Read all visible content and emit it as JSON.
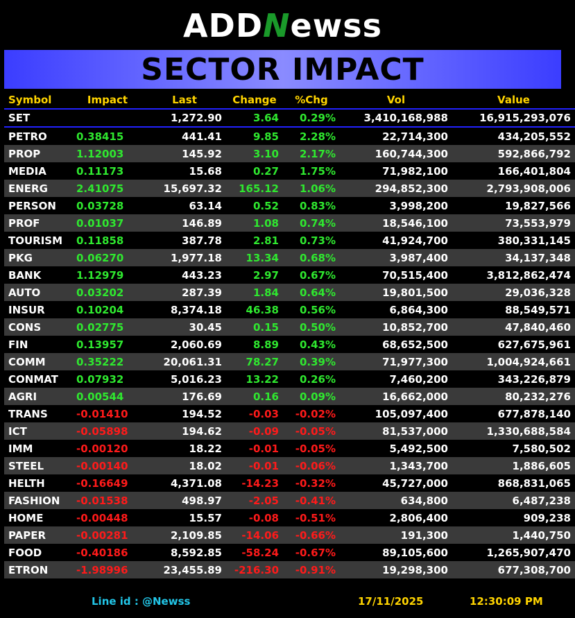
{
  "brand": {
    "part1": "ADD",
    "part2": "N",
    "part3": "ewss"
  },
  "title": "SECTOR IMPACT",
  "headers": [
    "Symbol",
    "Impact",
    "Last",
    "Change",
    "%Chg",
    "Vol",
    "Value"
  ],
  "index_row": {
    "symbol": "SET",
    "impact": "",
    "last": "1,272.90",
    "change": "3.64",
    "pchg": "0.29%",
    "vol": "3,410,168,988",
    "value": "16,915,293,076",
    "dir": "up"
  },
  "rows": [
    {
      "symbol": "PETRO",
      "impact": "0.38415",
      "last": "441.41",
      "change": "9.85",
      "pchg": "2.28%",
      "vol": "22,714,300",
      "value": "434,205,552",
      "dir": "up"
    },
    {
      "symbol": "PROP",
      "impact": "1.12003",
      "last": "145.92",
      "change": "3.10",
      "pchg": "2.17%",
      "vol": "160,744,300",
      "value": "592,866,792",
      "dir": "up"
    },
    {
      "symbol": "MEDIA",
      "impact": "0.11173",
      "last": "15.68",
      "change": "0.27",
      "pchg": "1.75%",
      "vol": "71,982,100",
      "value": "166,401,804",
      "dir": "up"
    },
    {
      "symbol": "ENERG",
      "impact": "2.41075",
      "last": "15,697.32",
      "change": "165.12",
      "pchg": "1.06%",
      "vol": "294,852,300",
      "value": "2,793,908,006",
      "dir": "up"
    },
    {
      "symbol": "PERSON",
      "impact": "0.03728",
      "last": "63.14",
      "change": "0.52",
      "pchg": "0.83%",
      "vol": "3,998,200",
      "value": "19,827,566",
      "dir": "up"
    },
    {
      "symbol": "PROF",
      "impact": "0.01037",
      "last": "146.89",
      "change": "1.08",
      "pchg": "0.74%",
      "vol": "18,546,100",
      "value": "73,553,979",
      "dir": "up"
    },
    {
      "symbol": "TOURISM",
      "impact": "0.11858",
      "last": "387.78",
      "change": "2.81",
      "pchg": "0.73%",
      "vol": "41,924,700",
      "value": "380,331,145",
      "dir": "up"
    },
    {
      "symbol": "PKG",
      "impact": "0.06270",
      "last": "1,977.18",
      "change": "13.34",
      "pchg": "0.68%",
      "vol": "3,987,400",
      "value": "34,137,348",
      "dir": "up"
    },
    {
      "symbol": "BANK",
      "impact": "1.12979",
      "last": "443.23",
      "change": "2.97",
      "pchg": "0.67%",
      "vol": "70,515,400",
      "value": "3,812,862,474",
      "dir": "up"
    },
    {
      "symbol": "AUTO",
      "impact": "0.03202",
      "last": "287.39",
      "change": "1.84",
      "pchg": "0.64%",
      "vol": "19,801,500",
      "value": "29,036,328",
      "dir": "up"
    },
    {
      "symbol": "INSUR",
      "impact": "0.10204",
      "last": "8,374.18",
      "change": "46.38",
      "pchg": "0.56%",
      "vol": "6,864,300",
      "value": "88,549,571",
      "dir": "up"
    },
    {
      "symbol": "CONS",
      "impact": "0.02775",
      "last": "30.45",
      "change": "0.15",
      "pchg": "0.50%",
      "vol": "10,852,700",
      "value": "47,840,460",
      "dir": "up"
    },
    {
      "symbol": "FIN",
      "impact": "0.13957",
      "last": "2,060.69",
      "change": "8.89",
      "pchg": "0.43%",
      "vol": "68,652,500",
      "value": "627,675,961",
      "dir": "up"
    },
    {
      "symbol": "COMM",
      "impact": "0.35222",
      "last": "20,061.31",
      "change": "78.27",
      "pchg": "0.39%",
      "vol": "71,977,300",
      "value": "1,004,924,661",
      "dir": "up"
    },
    {
      "symbol": "CONMAT",
      "impact": "0.07932",
      "last": "5,016.23",
      "change": "13.22",
      "pchg": "0.26%",
      "vol": "7,460,200",
      "value": "343,226,879",
      "dir": "up"
    },
    {
      "symbol": "AGRI",
      "impact": "0.00544",
      "last": "176.69",
      "change": "0.16",
      "pchg": "0.09%",
      "vol": "16,662,000",
      "value": "80,232,276",
      "dir": "up"
    },
    {
      "symbol": "TRANS",
      "impact": "-0.01410",
      "last": "194.52",
      "change": "-0.03",
      "pchg": "-0.02%",
      "vol": "105,097,400",
      "value": "677,878,140",
      "dir": "down"
    },
    {
      "symbol": "ICT",
      "impact": "-0.05898",
      "last": "194.62",
      "change": "-0.09",
      "pchg": "-0.05%",
      "vol": "81,537,000",
      "value": "1,330,688,584",
      "dir": "down"
    },
    {
      "symbol": "IMM",
      "impact": "-0.00120",
      "last": "18.22",
      "change": "-0.01",
      "pchg": "-0.05%",
      "vol": "5,492,500",
      "value": "7,580,502",
      "dir": "down"
    },
    {
      "symbol": "STEEL",
      "impact": "-0.00140",
      "last": "18.02",
      "change": "-0.01",
      "pchg": "-0.06%",
      "vol": "1,343,700",
      "value": "1,886,605",
      "dir": "down"
    },
    {
      "symbol": "HELTH",
      "impact": "-0.16649",
      "last": "4,371.08",
      "change": "-14.23",
      "pchg": "-0.32%",
      "vol": "45,727,000",
      "value": "868,831,065",
      "dir": "down"
    },
    {
      "symbol": "FASHION",
      "impact": "-0.01538",
      "last": "498.97",
      "change": "-2.05",
      "pchg": "-0.41%",
      "vol": "634,800",
      "value": "6,487,238",
      "dir": "down"
    },
    {
      "symbol": "HOME",
      "impact": "-0.00448",
      "last": "15.57",
      "change": "-0.08",
      "pchg": "-0.51%",
      "vol": "2,806,400",
      "value": "909,238",
      "dir": "down"
    },
    {
      "symbol": "PAPER",
      "impact": "-0.00281",
      "last": "2,109.85",
      "change": "-14.06",
      "pchg": "-0.66%",
      "vol": "191,300",
      "value": "1,440,750",
      "dir": "down"
    },
    {
      "symbol": "FOOD",
      "impact": "-0.40186",
      "last": "8,592.85",
      "change": "-58.24",
      "pchg": "-0.67%",
      "vol": "89,105,600",
      "value": "1,265,907,470",
      "dir": "down"
    },
    {
      "symbol": "ETRON",
      "impact": "-1.98996",
      "last": "23,455.89",
      "change": "-216.30",
      "pchg": "-0.91%",
      "vol": "19,298,300",
      "value": "677,308,700",
      "dir": "down"
    }
  ],
  "footer": {
    "line_label": "Line id  :",
    "line_value": "@Newss",
    "date": "17/11/2025",
    "time": "12:30:09 PM"
  },
  "colors": {
    "up": "#2fe82f",
    "down": "#ff1a1a",
    "header": "#ffd400",
    "banner": "#5a5cff",
    "accent_line": "#22c6e8"
  }
}
